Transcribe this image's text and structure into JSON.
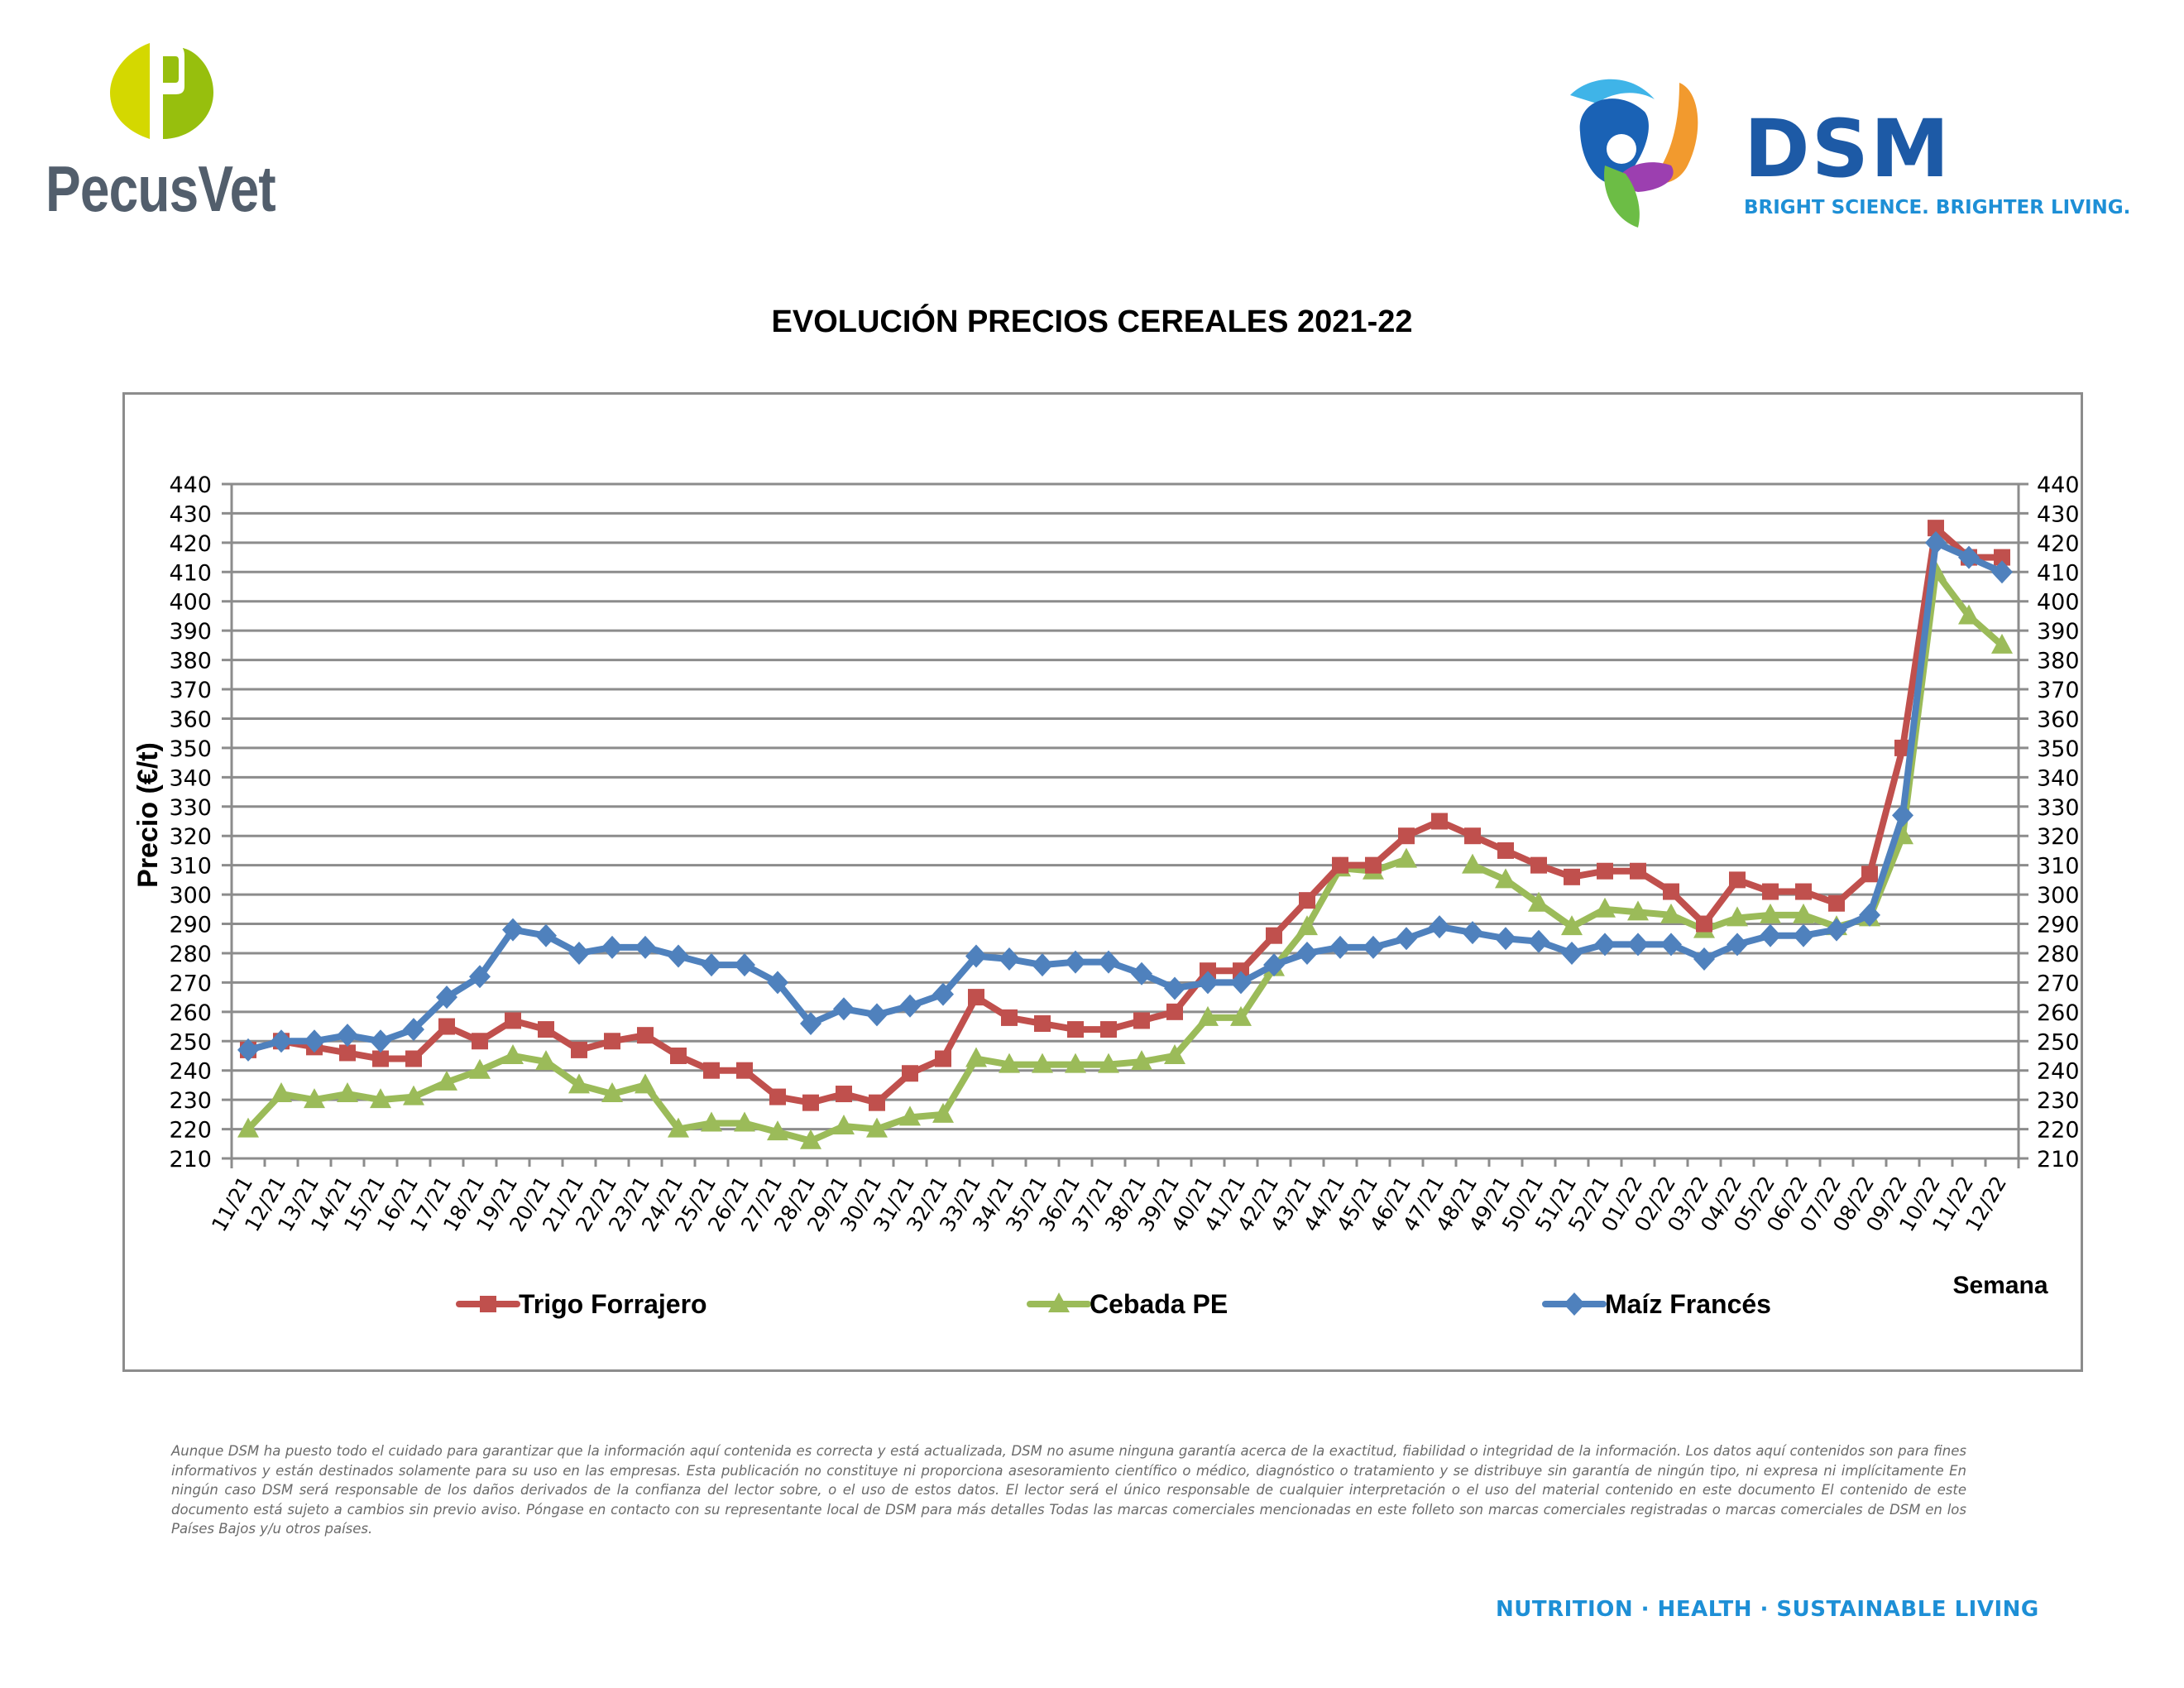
{
  "header": {
    "left_logo_text": "PecusVet",
    "right_logo_text": "DSM",
    "right_logo_tagline": "BRIGHT SCIENCE. BRIGHTER LIVING."
  },
  "colors": {
    "trigo": "#c0504d",
    "cebada": "#9bbb59",
    "maiz": "#4f81bd",
    "grid": "#8c8c8c",
    "pecus_text": "#525e6c",
    "dsm_blue": "#1d5aa6",
    "dsm_light_blue": "#1d8fd6"
  },
  "chart_data": {
    "type": "line",
    "title": "EVOLUCIÓN PRECIOS CEREALES 2021-22",
    "xlabel": "Semana",
    "ylabel": "Precio (€/t)",
    "ylim": [
      210,
      440
    ],
    "ytick_step": 10,
    "secondary_y_axis": true,
    "grid": "horizontal",
    "legend_position": "bottom",
    "categories": [
      "11/21",
      "12/21",
      "13/21",
      "14/21",
      "15/21",
      "16/21",
      "17/21",
      "18/21",
      "19/21",
      "20/21",
      "21/21",
      "22/21",
      "23/21",
      "24/21",
      "25/21",
      "26/21",
      "27/21",
      "28/21",
      "29/21",
      "30/21",
      "31/21",
      "32/21",
      "33/21",
      "34/21",
      "35/21",
      "36/21",
      "37/21",
      "38/21",
      "39/21",
      "40/21",
      "41/21",
      "42/21",
      "43/21",
      "44/21",
      "45/21",
      "46/21",
      "47/21",
      "48/21",
      "49/21",
      "50/21",
      "51/21",
      "52/21",
      "01/22",
      "02/22",
      "03/22",
      "04/22",
      "05/22",
      "06/22",
      "07/22",
      "08/22",
      "09/22",
      "10/22",
      "11/22",
      "12/22"
    ],
    "series": [
      {
        "name": "Trigo Forrajero",
        "marker": "square",
        "color": "#c0504d",
        "values": [
          247,
          250,
          248,
          246,
          244,
          244,
          255,
          250,
          257,
          254,
          247,
          250,
          252,
          245,
          240,
          240,
          231,
          229,
          232,
          229,
          239,
          244,
          265,
          258,
          256,
          254,
          254,
          257,
          260,
          274,
          274,
          286,
          298,
          310,
          310,
          320,
          325,
          320,
          315,
          310,
          306,
          308,
          308,
          301,
          290,
          305,
          301,
          301,
          297,
          307,
          350,
          425,
          415,
          415
        ]
      },
      {
        "name": "Cebada PE",
        "marker": "triangle",
        "color": "#9bbb59",
        "values": [
          220,
          232,
          230,
          232,
          230,
          231,
          236,
          240,
          245,
          243,
          235,
          232,
          235,
          220,
          222,
          222,
          219,
          216,
          221,
          220,
          224,
          225,
          244,
          242,
          242,
          242,
          242,
          243,
          245,
          258,
          258,
          275,
          289,
          309,
          308,
          312,
          null,
          310,
          305,
          297,
          289,
          295,
          294,
          293,
          288,
          292,
          293,
          293,
          289,
          292,
          320,
          410,
          395,
          385
        ]
      },
      {
        "name": "Maíz Francés",
        "marker": "diamond",
        "color": "#4f81bd",
        "values": [
          247,
          250,
          250,
          252,
          250,
          254,
          265,
          272,
          288,
          286,
          280,
          282,
          282,
          279,
          276,
          276,
          270,
          256,
          261,
          259,
          262,
          266,
          279,
          278,
          276,
          277,
          277,
          273,
          268,
          270,
          270,
          276,
          280,
          282,
          282,
          285,
          289,
          287,
          285,
          284,
          280,
          283,
          283,
          283,
          278,
          283,
          286,
          286,
          288,
          293,
          327,
          420,
          415,
          410
        ]
      }
    ]
  },
  "footer": {
    "disclaimer": "Aunque DSM ha puesto todo el cuidado para garantizar que la información aquí contenida es correcta y está actualizada, DSM no asume ninguna garantía acerca de la exactitud, fiabilidad o integridad de la información. Los datos aquí contenidos son para fines informativos y están destinados solamente para su uso en las empresas. Esta publicación no constituye ni proporciona asesoramiento científico o médico, diagnóstico o tratamiento y se distribuye sin garantía de ningún tipo, ni expresa ni implícitamente En ningún caso DSM será responsable de los daños derivados de la confianza del lector sobre, o el uso de estos datos. El lector será el único responsable de cualquier interpretación o el uso del material contenido en este documento El contenido de este documento está sujeto a cambios sin previo aviso. Póngase en contacto con su representante local de DSM para más detalles Todas las marcas comerciales mencionadas en este folleto son marcas comerciales registradas o marcas comerciales de DSM en los Países Bajos y/u otros países.",
    "slogan": "NUTRITION  ·  HEALTH  ·  SUSTAINABLE LIVING"
  }
}
